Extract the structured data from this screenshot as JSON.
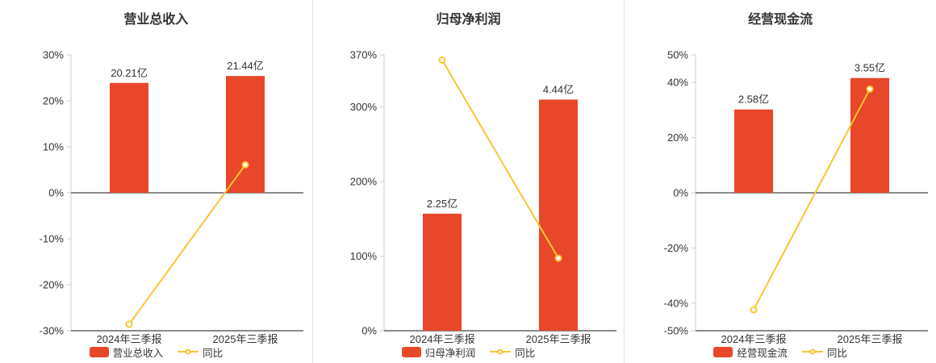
{
  "colors": {
    "bar": "#e8472a",
    "line": "#fbc531",
    "axis": "#444444",
    "y_axis": "#cccccc",
    "tick_text": "#333333",
    "divider": "#e3e3e3",
    "background": "#ffffff"
  },
  "chart_data": [
    {
      "type": "bar",
      "title": "营业总收入",
      "categories": [
        "2024年三季报",
        "2025年三季报"
      ],
      "series": [
        {
          "name": "营业总收入",
          "kind": "bar",
          "values_display": [
            "20.21亿",
            "21.44亿"
          ],
          "values_axis_pct": [
            23.9,
            25.4
          ]
        },
        {
          "name": "同比",
          "kind": "line",
          "values_pct": [
            -28.6,
            6.09
          ]
        }
      ],
      "ylim": [
        -30,
        30
      ],
      "y_ticks": [
        30,
        20,
        10,
        0,
        -10,
        -20,
        -30
      ],
      "y_tick_suffix": "%",
      "legend_position": "bottom",
      "grid": false
    },
    {
      "type": "bar",
      "title": "归母净利润",
      "categories": [
        "2024年三季报",
        "2025年三季报"
      ],
      "series": [
        {
          "name": "归母净利润",
          "kind": "bar",
          "values_display": [
            "2.25亿",
            "4.44亿"
          ],
          "values_axis_pct": [
            157,
            310
          ]
        },
        {
          "name": "同比",
          "kind": "line",
          "values_pct": [
            363,
            97.3
          ]
        }
      ],
      "ylim": [
        0,
        370
      ],
      "y_ticks": [
        370,
        300,
        200,
        100,
        0
      ],
      "y_tick_suffix": "%",
      "legend_position": "bottom",
      "grid": false
    },
    {
      "type": "bar",
      "title": "经营现金流",
      "categories": [
        "2024年三季报",
        "2025年三季报"
      ],
      "series": [
        {
          "name": "经营现金流",
          "kind": "bar",
          "values_display": [
            "2.58亿",
            "3.55亿"
          ],
          "values_axis_pct": [
            30.2,
            41.6
          ]
        },
        {
          "name": "同比",
          "kind": "line",
          "values_pct": [
            -42.4,
            37.6
          ]
        }
      ],
      "ylim": [
        -50,
        50
      ],
      "y_ticks": [
        50,
        40,
        20,
        0,
        -20,
        -40,
        -50
      ],
      "y_tick_suffix": "%",
      "legend_position": "bottom",
      "grid": false
    }
  ]
}
